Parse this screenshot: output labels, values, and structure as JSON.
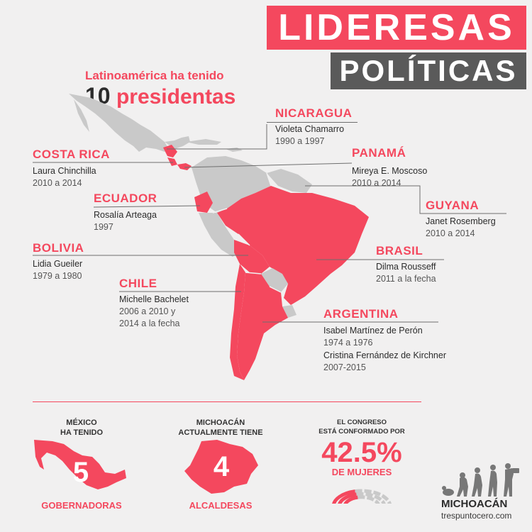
{
  "title": {
    "line1": "LIDERESAS",
    "line2": "POLÍTICAS"
  },
  "subtitle": {
    "line1": "Latinoamérica ha tenido",
    "count": "10",
    "line2": "presidentas"
  },
  "leaders": {
    "nicaragua": {
      "country": "NICARAGUA",
      "name": "Violeta Chamarro",
      "years": "1990 a 1997"
    },
    "costa_rica": {
      "country": "COSTA RICA",
      "name": "Laura Chinchilla",
      "years": "2010 a 2014"
    },
    "panama": {
      "country": "PANAMÁ",
      "name": "Mireya E. Moscoso",
      "years": "2010 a 2014"
    },
    "ecuador": {
      "country": "ECUADOR",
      "name": "Rosalía Arteaga",
      "years": "1997"
    },
    "guyana": {
      "country": "GUYANA",
      "name": "Janet Rosemberg",
      "years": "2010 a 2014"
    },
    "bolivia": {
      "country": "BOLIVIA",
      "name": "Lidia Gueiler",
      "years": "1979 a 1980"
    },
    "brasil": {
      "country": "BRASIL",
      "name": "Dilma Rousseff",
      "years": "2011 a la fecha"
    },
    "chile": {
      "country": "CHILE",
      "name": "Michelle Bachelet",
      "years1": "2006 a 2010 y",
      "years2": "2014 a la fecha"
    },
    "argentina": {
      "country": "ARGENTINA",
      "name1": "Isabel Martínez de Perón",
      "years1": "1974 a 1976",
      "name2": "Cristina Fernández de Kirchner",
      "years2": "2007-2015"
    }
  },
  "stats": {
    "mexico": {
      "top1": "MÉXICO",
      "top2": "HA TENIDO",
      "number": "5",
      "bottom": "GOBERNADORAS"
    },
    "michoacan": {
      "top1": "MICHOACÁN",
      "top2": "ACTUALMENTE TIENE",
      "number": "4",
      "bottom": "ALCALDESAS"
    },
    "congreso": {
      "top1": "EL CONGRESO",
      "top2": "ESTÁ CONFORMADO POR",
      "percent": "42.5%",
      "bottom": "DE MUJERES",
      "fraction": 0.425
    }
  },
  "brand": {
    "name": "MICHOACÁN",
    "site": "trespuntocero.com"
  },
  "colors": {
    "accent": "#f4485e",
    "dark": "#5a5a5a",
    "map_gray": "#c9c9c9",
    "background": "#f1f0f0"
  }
}
